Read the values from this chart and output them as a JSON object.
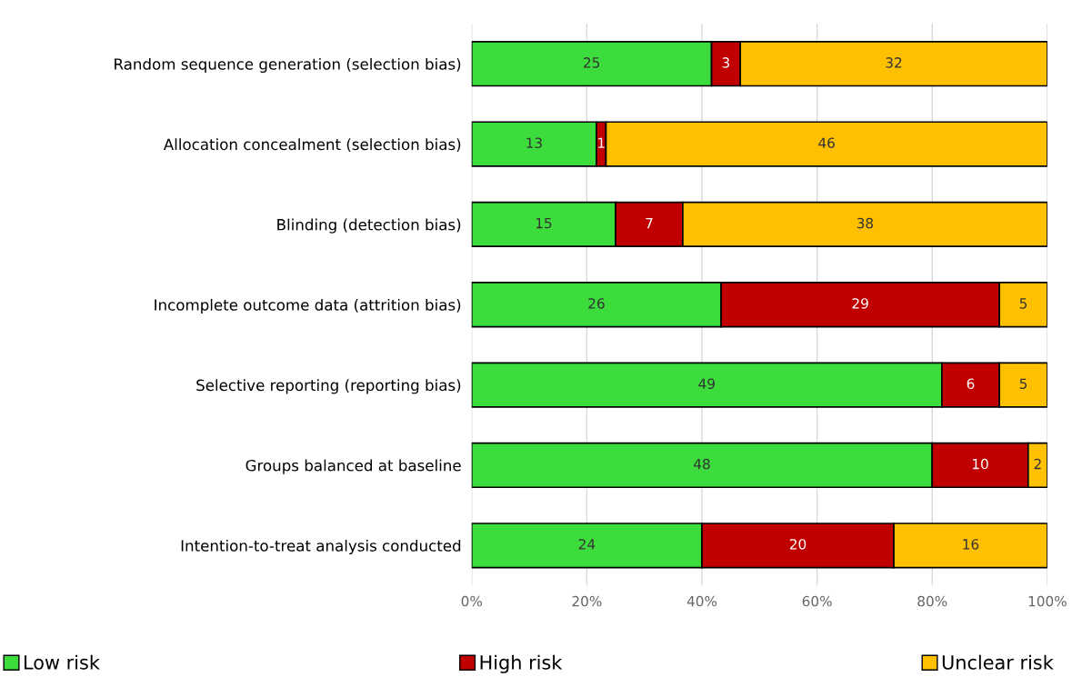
{
  "chart_data": {
    "type": "bar",
    "orientation": "horizontal",
    "stacked": true,
    "categories": [
      "Random sequence generation (selection bias)",
      "Allocation concealment (selection bias)",
      "Blinding (detection bias)",
      "Incomplete outcome data (attrition bias)",
      "Selective reporting (reporting bias)",
      "Groups balanced at baseline",
      "Intention-to-treat analysis conducted"
    ],
    "series": [
      {
        "name": "Low risk",
        "color": "#3ddc3d",
        "values": [
          25,
          13,
          15,
          26,
          49,
          48,
          24
        ]
      },
      {
        "name": "High risk",
        "color": "#c00000",
        "values": [
          3,
          1,
          7,
          29,
          6,
          10,
          20
        ]
      },
      {
        "name": "Unclear risk",
        "color": "#ffc000",
        "values": [
          32,
          46,
          38,
          5,
          5,
          2,
          16
        ]
      }
    ],
    "xlim": [
      0,
      60
    ],
    "tick_labels": "y",
    "x2lim": [
      0,
      100
    ],
    "x2ticks": [
      {
        "value": 0,
        "label": "0%"
      },
      {
        "value": 20,
        "label": "20%"
      },
      {
        "value": 40,
        "label": "40%"
      },
      {
        "value": 60,
        "label": "60%"
      },
      {
        "value": 80,
        "label": "80%"
      },
      {
        "value": 100,
        "label": "100%"
      }
    ],
    "data_labels": true,
    "grid": "x",
    "legend": "bottom"
  }
}
